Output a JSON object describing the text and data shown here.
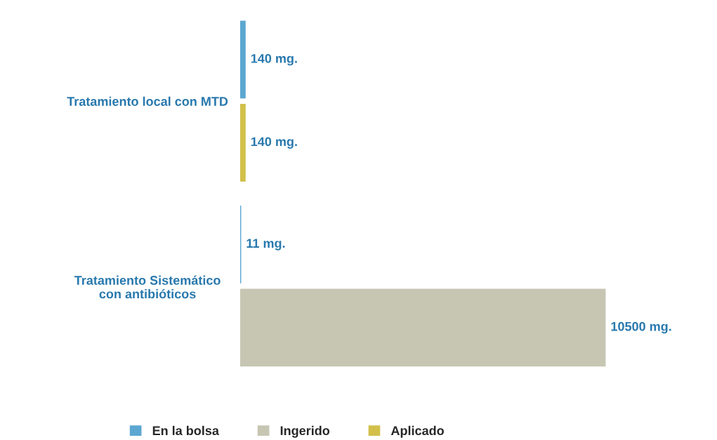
{
  "chart_data": {
    "type": "bar",
    "orientation": "horizontal",
    "categories": [
      "Tratamiento local con MTD",
      "Tratamiento Sistemático\ncon antibióticos"
    ],
    "series": [
      {
        "name": "En la bolsa",
        "color": "#5ba7d1",
        "values": [
          140,
          11
        ],
        "value_labels": [
          "140 mg.",
          "11 mg."
        ]
      },
      {
        "name": "Ingerido",
        "color": "#c7c6b3",
        "values": [
          null,
          10500
        ],
        "value_labels": [
          null,
          "10500 mg."
        ]
      },
      {
        "name": "Aplicado",
        "color": "#d2c04a",
        "values": [
          140,
          null
        ],
        "value_labels": [
          "140 mg.",
          null
        ]
      }
    ],
    "legend": "bottom",
    "grid": false
  }
}
